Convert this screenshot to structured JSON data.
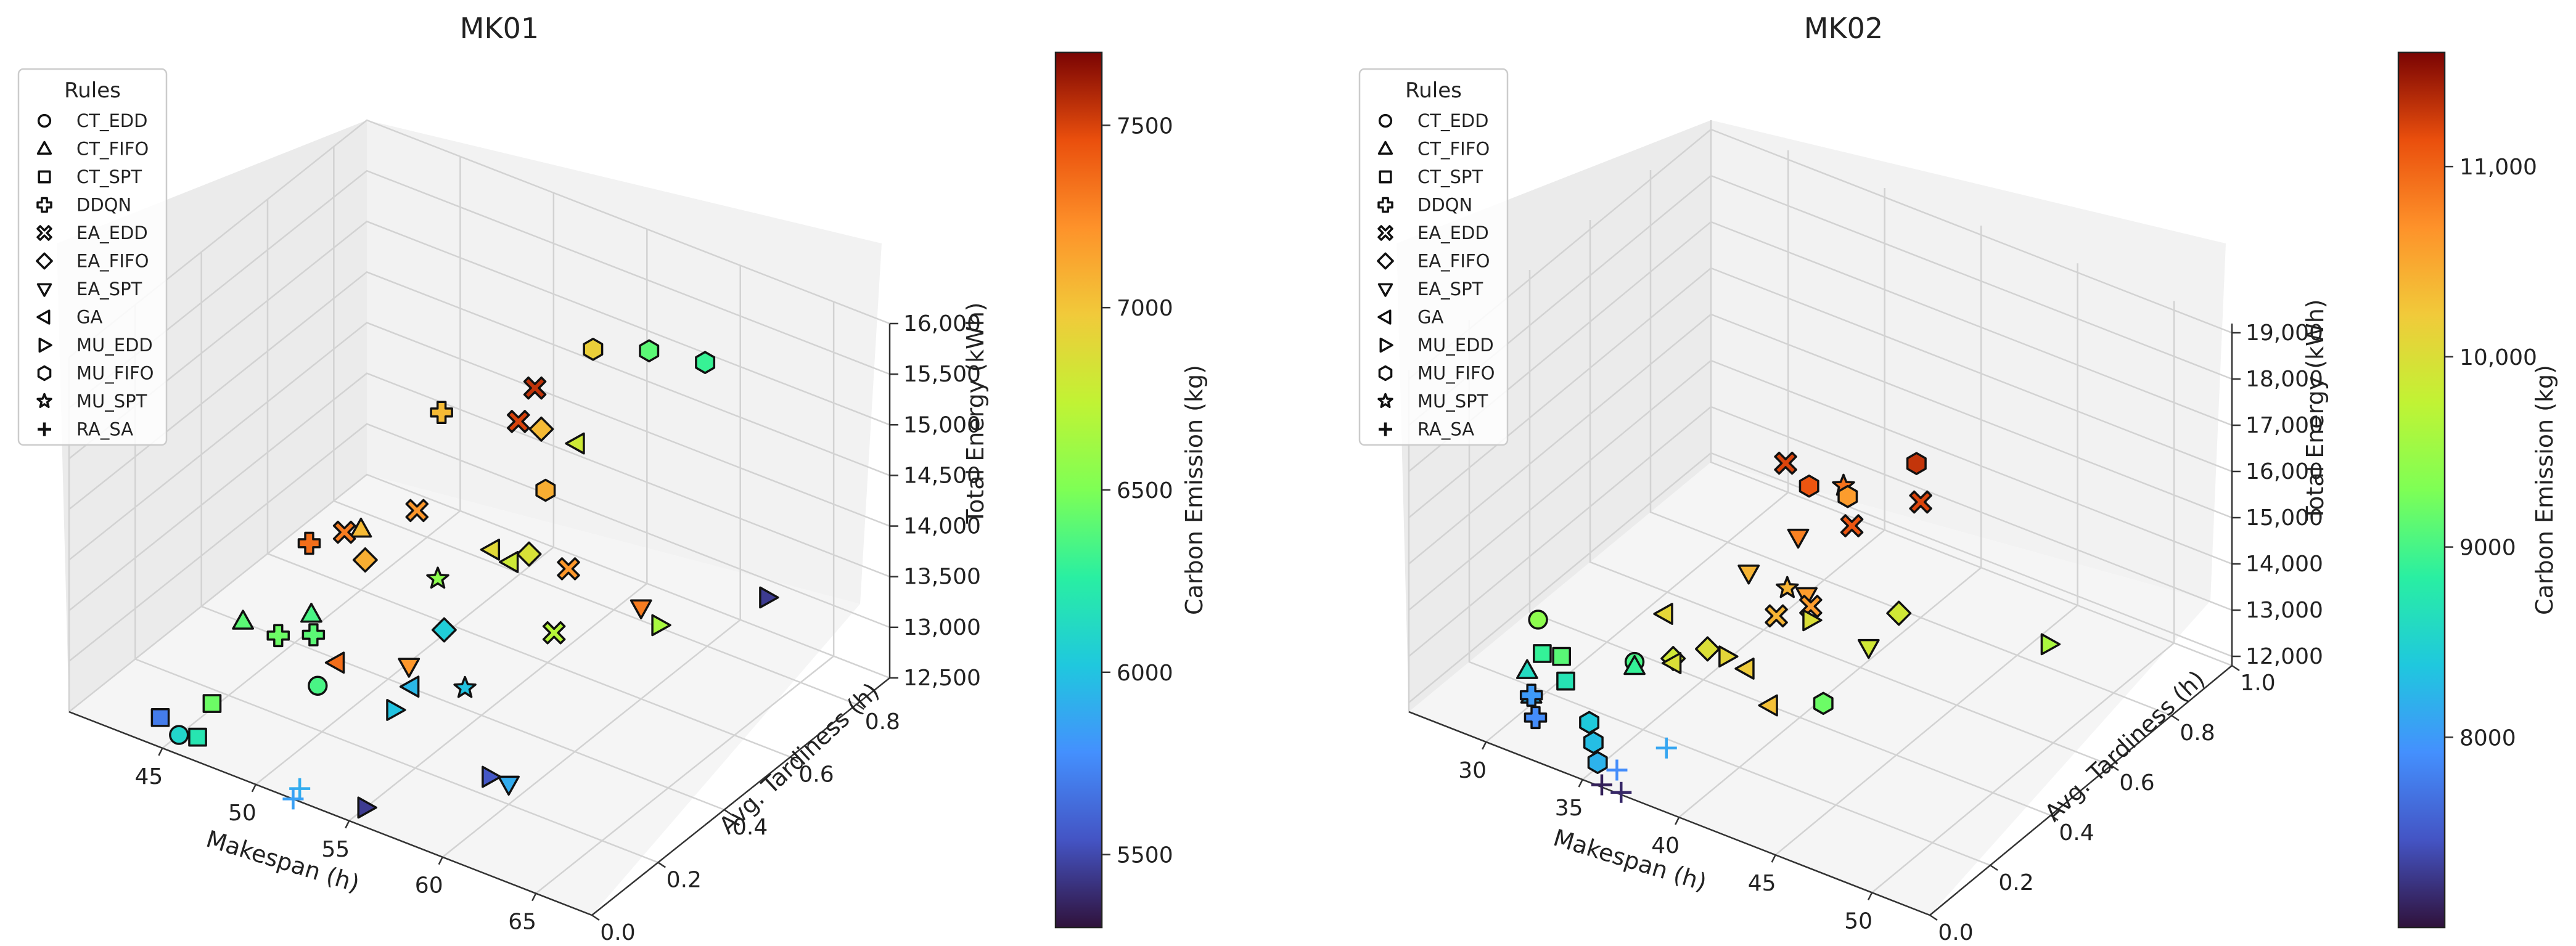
{
  "legend_title": "Rules",
  "legend_items": [
    {
      "label": "CT_EDD",
      "marker": "circle"
    },
    {
      "label": "CT_FIFO",
      "marker": "triangle-up"
    },
    {
      "label": "CT_SPT",
      "marker": "square"
    },
    {
      "label": "DDQN",
      "marker": "plus-thick"
    },
    {
      "label": "EA_EDD",
      "marker": "x-thick"
    },
    {
      "label": "EA_FIFO",
      "marker": "diamond"
    },
    {
      "label": "EA_SPT",
      "marker": "triangle-down"
    },
    {
      "label": "GA",
      "marker": "triangle-left"
    },
    {
      "label": "MU_EDD",
      "marker": "triangle-right"
    },
    {
      "label": "MU_FIFO",
      "marker": "hexagon"
    },
    {
      "label": "MU_SPT",
      "marker": "star"
    },
    {
      "label": "RA_SA",
      "marker": "plus-thin"
    }
  ],
  "chart_data": [
    {
      "type": "scatter3d",
      "title": "MK01",
      "xlabel": "Makespan (h)",
      "ylabel": "Avg. Tardiness (h)",
      "zlabel": "Total Energy (kWh)",
      "colorbar_label": "Carbon Emission (kg)",
      "xlim": [
        40,
        68
      ],
      "ylim": [
        0.0,
        0.9
      ],
      "zlim": [
        12500,
        16000
      ],
      "xticks": [
        "45",
        "50",
        "55",
        "60",
        "65"
      ],
      "yticks": [
        "0.0",
        "0.2",
        "0.4",
        "0.6",
        "0.8"
      ],
      "zticks": [
        "12,500",
        "13,000",
        "13,500",
        "14,000",
        "14,500",
        "15,000",
        "15,500",
        "16,000"
      ],
      "clim": [
        5300,
        7700
      ],
      "cticks": [
        "5500",
        "6000",
        "6500",
        "7000",
        "7500"
      ],
      "points": [
        {
          "rule": "CT_EDD",
          "x": 45,
          "y": 0.05,
          "z": 12500,
          "c": 6100
        },
        {
          "rule": "CT_EDD",
          "x": 48,
          "y": 0.3,
          "z": 12550,
          "c": 6350
        },
        {
          "rule": "CT_FIFO",
          "x": 44,
          "y": 0.3,
          "z": 12900,
          "c": 6400
        },
        {
          "rule": "CT_FIFO",
          "x": 45,
          "y": 0.45,
          "z": 12650,
          "c": 6350
        },
        {
          "rule": "CT_FIFO",
          "x": 45,
          "y": 0.6,
          "z": 13100,
          "c": 7050
        },
        {
          "rule": "CT_SPT",
          "x": 44,
          "y": 0.05,
          "z": 12600,
          "c": 5700
        },
        {
          "rule": "CT_SPT",
          "x": 46,
          "y": 0.05,
          "z": 12550,
          "c": 6200
        },
        {
          "rule": "CT_SPT",
          "x": 45,
          "y": 0.15,
          "z": 12550,
          "c": 6450
        },
        {
          "rule": "DDQN",
          "x": 44,
          "y": 0.5,
          "z": 13150,
          "c": 7350
        },
        {
          "rule": "DDQN",
          "x": 45,
          "y": 0.35,
          "z": 12700,
          "c": 6450
        },
        {
          "rule": "DDQN",
          "x": 46,
          "y": 0.4,
          "z": 12650,
          "c": 6400
        },
        {
          "rule": "DDQN",
          "x": 44,
          "y": 0.9,
          "z": 13400,
          "c": 7050
        },
        {
          "rule": "EA_EDD",
          "x": 45,
          "y": 0.55,
          "z": 13200,
          "c": 7300
        },
        {
          "rule": "EA_EDD",
          "x": 48,
          "y": 0.6,
          "z": 13500,
          "c": 7200
        },
        {
          "rule": "EA_EDD",
          "x": 49,
          "y": 0.9,
          "z": 14000,
          "c": 7550
        },
        {
          "rule": "EA_EDD",
          "x": 49,
          "y": 0.85,
          "z": 13800,
          "c": 7500
        },
        {
          "rule": "EA_EDD",
          "x": 57,
          "y": 0.55,
          "z": 13700,
          "c": 7200
        },
        {
          "rule": "EA_EDD",
          "x": 58,
          "y": 0.45,
          "z": 13400,
          "c": 6700
        },
        {
          "rule": "EA_FIFO",
          "x": 47,
          "y": 0.5,
          "z": 13200,
          "c": 7100
        },
        {
          "rule": "EA_FIFO",
          "x": 52,
          "y": 0.75,
          "z": 14200,
          "c": 7050
        },
        {
          "rule": "EA_FIFO",
          "x": 53,
          "y": 0.4,
          "z": 13200,
          "c": 6050
        },
        {
          "rule": "EA_FIFO",
          "x": 54,
          "y": 0.6,
          "z": 13500,
          "c": 6850
        },
        {
          "rule": "EA_SPT",
          "x": 52,
          "y": 0.35,
          "z": 12900,
          "c": 7200
        },
        {
          "rule": "EA_SPT",
          "x": 60,
          "y": 0.6,
          "z": 13400,
          "c": 7300
        },
        {
          "rule": "EA_SPT",
          "x": 60,
          "y": 0.2,
          "z": 12700,
          "c": 5900
        },
        {
          "rule": "GA",
          "x": 49,
          "y": 0.3,
          "z": 12850,
          "c": 7350
        },
        {
          "rule": "GA",
          "x": 52,
          "y": 0.6,
          "z": 13400,
          "c": 6900
        },
        {
          "rule": "GA",
          "x": 53,
          "y": 0.6,
          "z": 13350,
          "c": 6800
        },
        {
          "rule": "GA",
          "x": 53,
          "y": 0.8,
          "z": 14000,
          "c": 6800
        },
        {
          "rule": "GA",
          "x": 53,
          "y": 0.3,
          "z": 12900,
          "c": 5950
        },
        {
          "rule": "MU_EDD",
          "x": 53,
          "y": 0.25,
          "z": 12800,
          "c": 6000
        },
        {
          "rule": "MU_EDD",
          "x": 55,
          "y": 0.05,
          "z": 12500,
          "c": 5450
        },
        {
          "rule": "MU_EDD",
          "x": 59,
          "y": 0.2,
          "z": 12700,
          "c": 5550
        },
        {
          "rule": "MU_EDD",
          "x": 61,
          "y": 0.6,
          "z": 13300,
          "c": 6650
        },
        {
          "rule": "MU_EDD",
          "x": 65,
          "y": 0.7,
          "z": 13600,
          "c": 5450
        },
        {
          "rule": "MU_FIFO",
          "x": 54,
          "y": 0.65,
          "z": 14000,
          "c": 7100
        },
        {
          "rule": "MU_FIFO",
          "x": 53,
          "y": 0.85,
          "z": 14800,
          "c": 6950
        },
        {
          "rule": "MU_FIFO",
          "x": 56,
          "y": 0.85,
          "z": 15000,
          "c": 6400
        },
        {
          "rule": "MU_FIFO",
          "x": 59,
          "y": 0.85,
          "z": 15100,
          "c": 6300
        },
        {
          "rule": "MU_SPT",
          "x": 50,
          "y": 0.55,
          "z": 13100,
          "c": 6550
        },
        {
          "rule": "MU_SPT",
          "x": 55,
          "y": 0.35,
          "z": 12900,
          "c": 6000
        },
        {
          "rule": "RA_SA",
          "x": 52,
          "y": 0.0,
          "z": 12500,
          "c": 5850
        },
        {
          "rule": "RA_SA",
          "x": 52,
          "y": 0.02,
          "z": 12550,
          "c": 5900
        }
      ]
    },
    {
      "type": "scatter3d",
      "title": "MK02",
      "xlabel": "Makespan (h)",
      "ylabel": "Avg. Tardiness (h)",
      "zlabel": "Total Energy (kWh)",
      "colorbar_label": "Carbon Emission (kg)",
      "xlim": [
        26,
        53
      ],
      "ylim": [
        0.0,
        1.0
      ],
      "zlim": [
        11800,
        19200
      ],
      "xticks": [
        "30",
        "35",
        "40",
        "45",
        "50"
      ],
      "yticks": [
        "0.0",
        "0.2",
        "0.4",
        "0.6",
        "0.8",
        "1.0"
      ],
      "zticks": [
        "12,000",
        "13,000",
        "14,000",
        "15,000",
        "16,000",
        "17,000",
        "18,000",
        "19,000"
      ],
      "clim": [
        7000,
        11600
      ],
      "cticks": [
        "8000",
        "9000",
        "10,000",
        "11,000"
      ],
      "points": [
        {
          "rule": "CT_EDD",
          "x": 28,
          "y": 0.3,
          "z": 12500,
          "c": 9400
        },
        {
          "rule": "CT_EDD",
          "x": 33,
          "y": 0.3,
          "z": 12400,
          "c": 9000
        },
        {
          "rule": "CT_FIFO",
          "x": 29,
          "y": 0.2,
          "z": 12100,
          "c": 8600
        },
        {
          "rule": "CT_FIFO",
          "x": 30,
          "y": 0.15,
          "z": 12000,
          "c": 8200
        },
        {
          "rule": "CT_FIFO",
          "x": 33,
          "y": 0.3,
          "z": 12300,
          "c": 8900
        },
        {
          "rule": "CT_SPT",
          "x": 29,
          "y": 0.25,
          "z": 12200,
          "c": 8900
        },
        {
          "rule": "CT_SPT",
          "x": 30,
          "y": 0.25,
          "z": 12300,
          "c": 9100
        },
        {
          "rule": "CT_SPT",
          "x": 31,
          "y": 0.2,
          "z": 12200,
          "c": 8700
        },
        {
          "rule": "DDQN",
          "x": 30,
          "y": 0.15,
          "z": 12000,
          "c": 8000
        },
        {
          "rule": "DDQN",
          "x": 31,
          "y": 0.1,
          "z": 11950,
          "c": 7900
        },
        {
          "rule": "EA_EDD",
          "x": 33,
          "y": 0.8,
          "z": 14000,
          "c": 11200
        },
        {
          "rule": "EA_EDD",
          "x": 38,
          "y": 0.7,
          "z": 14000,
          "c": 11100
        },
        {
          "rule": "EA_EDD",
          "x": 40,
          "y": 0.8,
          "z": 14300,
          "c": 11200
        },
        {
          "rule": "EA_EDD",
          "x": 39,
          "y": 0.5,
          "z": 13500,
          "c": 10600
        },
        {
          "rule": "EA_EDD",
          "x": 38,
          "y": 0.45,
          "z": 13400,
          "c": 10400
        },
        {
          "rule": "EA_FIFO",
          "x": 35,
          "y": 0.3,
          "z": 12800,
          "c": 9900
        },
        {
          "rule": "EA_FIFO",
          "x": 36,
          "y": 0.35,
          "z": 12900,
          "c": 10000
        },
        {
          "rule": "EA_FIFO",
          "x": 42,
          "y": 0.6,
          "z": 13300,
          "c": 9900
        },
        {
          "rule": "EA_SPT",
          "x": 35,
          "y": 0.55,
          "z": 13300,
          "c": 10400
        },
        {
          "rule": "EA_SPT",
          "x": 36,
          "y": 0.65,
          "z": 13700,
          "c": 10800
        },
        {
          "rule": "EA_SPT",
          "x": 38,
          "y": 0.55,
          "z": 13300,
          "c": 10600
        },
        {
          "rule": "EA_SPT",
          "x": 42,
          "y": 0.5,
          "z": 13100,
          "c": 9900
        },
        {
          "rule": "GA",
          "x": 33,
          "y": 0.4,
          "z": 12900,
          "c": 10100
        },
        {
          "rule": "GA",
          "x": 35,
          "y": 0.3,
          "z": 12700,
          "c": 10000
        },
        {
          "rule": "GA",
          "x": 38,
          "y": 0.35,
          "z": 12800,
          "c": 10200
        },
        {
          "rule": "GA",
          "x": 40,
          "y": 0.3,
          "z": 12600,
          "c": 10300
        },
        {
          "rule": "MU_EDD",
          "x": 37,
          "y": 0.35,
          "z": 12900,
          "c": 10100
        },
        {
          "rule": "MU_EDD",
          "x": 39,
          "y": 0.5,
          "z": 13200,
          "c": 10000
        },
        {
          "rule": "MU_EDD",
          "x": 49,
          "y": 0.65,
          "z": 13500,
          "c": 9600
        },
        {
          "rule": "MU_FIFO",
          "x": 33,
          "y": 0.15,
          "z": 11900,
          "c": 8400
        },
        {
          "rule": "MU_FIFO",
          "x": 34,
          "y": 0.1,
          "z": 11900,
          "c": 8300
        },
        {
          "rule": "MU_FIFO",
          "x": 35,
          "y": 0.05,
          "z": 11900,
          "c": 8200
        },
        {
          "rule": "MU_FIFO",
          "x": 35,
          "y": 0.75,
          "z": 14100,
          "c": 11100
        },
        {
          "rule": "MU_FIFO",
          "x": 37,
          "y": 0.75,
          "z": 14200,
          "c": 10600
        },
        {
          "rule": "MU_FIFO",
          "x": 39,
          "y": 0.85,
          "z": 14700,
          "c": 11300
        },
        {
          "rule": "MU_FIFO",
          "x": 42,
          "y": 0.35,
          "z": 12700,
          "c": 9200
        },
        {
          "rule": "MU_SPT",
          "x": 36,
          "y": 0.8,
          "z": 14000,
          "c": 10900
        },
        {
          "rule": "MU_SPT",
          "x": 37,
          "y": 0.55,
          "z": 13300,
          "c": 10400
        },
        {
          "rule": "RA_SA",
          "x": 36,
          "y": 0.05,
          "z": 11900,
          "c": 7900
        },
        {
          "rule": "RA_SA",
          "x": 37,
          "y": 0.15,
          "z": 12000,
          "c": 8100
        },
        {
          "rule": "RA_SA",
          "x": 36,
          "y": 0.0,
          "z": 11850,
          "c": 7100
        },
        {
          "rule": "RA_SA",
          "x": 37,
          "y": 0.0,
          "z": 11850,
          "c": 7150
        }
      ]
    }
  ]
}
